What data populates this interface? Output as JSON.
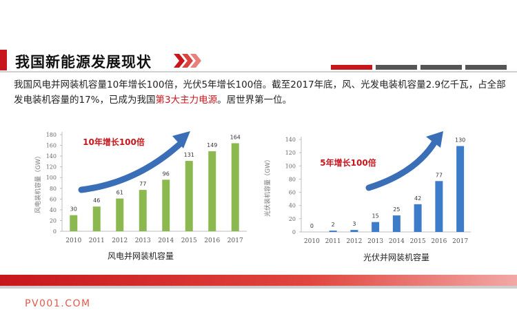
{
  "header": {
    "title": "我国新能源发展现状"
  },
  "paragraph": {
    "part1": "我国风电并网装机容量10年增长100倍，光伏5年增长100倍。截至2017年底，风、光发电装机容量2.9亿千瓦，占全部发电装机容量的17%，已成为我国",
    "highlight": "第3大主力电源",
    "part2": "。居世界第一位。"
  },
  "colors": {
    "accent": "#c8161d",
    "wind": "#8cb850",
    "solar": "#3d7cc9",
    "arrow": "#3a6fb8"
  },
  "chart_data": [
    {
      "type": "bar",
      "title": "风电并网装机容量",
      "ylabel": "风电装机容量（GW）",
      "annotation": "10年增长100倍",
      "categories": [
        "2010",
        "2011",
        "2012",
        "2013",
        "2014",
        "2015",
        "2016",
        "2017"
      ],
      "values": [
        30,
        46,
        61,
        77,
        96,
        131,
        149,
        164
      ],
      "ylim": [
        0,
        180
      ],
      "yticks": [
        0,
        20,
        40,
        60,
        80,
        100,
        120,
        140,
        160,
        180
      ],
      "grid": false
    },
    {
      "type": "bar",
      "title": "光伏并网装机容量",
      "ylabel": "光伏装机容量（GW）",
      "annotation": "5年增长100倍",
      "categories": [
        "2010",
        "2011",
        "2012",
        "2013",
        "2014",
        "2015",
        "2016",
        "2017"
      ],
      "values": [
        0,
        2,
        3,
        15,
        25,
        42,
        77,
        130
      ],
      "ylim": [
        0,
        140
      ],
      "yticks": [
        0,
        20,
        40,
        60,
        80,
        100,
        120,
        140
      ],
      "grid": false
    }
  ],
  "footer": {
    "logo": "PV001.COM"
  }
}
